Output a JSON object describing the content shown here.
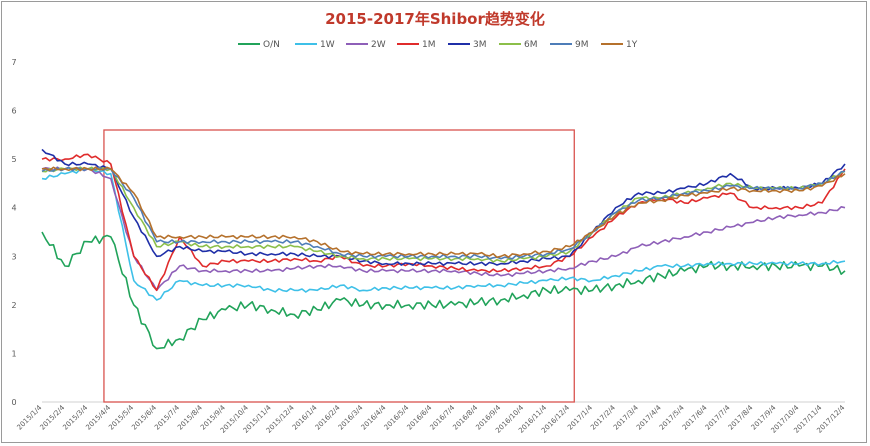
{
  "chart_data": {
    "type": "line",
    "title": "2015-2017年Shibor趋势变化",
    "xlabel": "",
    "ylabel": "",
    "ylim": [
      0,
      7
    ],
    "yticks": [
      "0",
      "1",
      "2",
      "3",
      "4",
      "5",
      "6",
      "7"
    ],
    "xticks": [
      "2015/1/4",
      "2015/2/4",
      "2015/3/4",
      "2015/4/4",
      "2015/5/4",
      "2015/6/4",
      "2015/7/4",
      "2015/8/4",
      "2015/9/4",
      "2015/10/4",
      "2015/11/4",
      "2015/12/4",
      "2016/1/4",
      "2016/2/4",
      "2016/3/4",
      "2016/4/4",
      "2016/5/4",
      "2016/6/4",
      "2016/7/4",
      "2016/8/4",
      "2016/9/4",
      "2016/10/4",
      "2016/11/4",
      "2016/12/4",
      "2017/1/4",
      "2017/2/4",
      "2017/3/4",
      "2017/4/4",
      "2017/5/4",
      "2017/6/4",
      "2017/7/4",
      "2017/8/4",
      "2017/9/4",
      "2017/10/4",
      "2017/11/4",
      "2017/12/4"
    ],
    "x_months": [
      0,
      1,
      2,
      3,
      4,
      5,
      6,
      7,
      8,
      9,
      10,
      11,
      12,
      13,
      14,
      15,
      16,
      17,
      18,
      19,
      20,
      21,
      22,
      23,
      24,
      25,
      26,
      27,
      28,
      29,
      30,
      31,
      32,
      33,
      34,
      35
    ],
    "grid": false,
    "legend": "top",
    "highlight_box": {
      "x_start_month": 2.7,
      "x_end_month": 23.2,
      "y_low": 0,
      "y_high": 5.6,
      "color": "#d9534f"
    },
    "series": [
      {
        "name": "O/N",
        "color": "#21a35a",
        "values": [
          3.5,
          2.8,
          3.3,
          3.4,
          2.0,
          1.1,
          1.3,
          1.7,
          1.9,
          2.0,
          1.9,
          1.8,
          1.9,
          2.1,
          2.0,
          2.0,
          2.0,
          2.0,
          2.0,
          2.05,
          2.1,
          2.2,
          2.3,
          2.3,
          2.3,
          2.4,
          2.5,
          2.6,
          2.7,
          2.8,
          2.8,
          2.8,
          2.8,
          2.8,
          2.8,
          2.7
        ]
      },
      {
        "name": "1W",
        "color": "#3ec0e8",
        "values": [
          4.6,
          4.7,
          4.8,
          4.7,
          2.5,
          2.1,
          2.5,
          2.4,
          2.4,
          2.4,
          2.3,
          2.3,
          2.3,
          2.4,
          2.3,
          2.35,
          2.35,
          2.35,
          2.35,
          2.4,
          2.4,
          2.45,
          2.5,
          2.55,
          2.5,
          2.6,
          2.7,
          2.8,
          2.8,
          2.85,
          2.85,
          2.85,
          2.85,
          2.85,
          2.85,
          2.9
        ]
      },
      {
        "name": "2W",
        "color": "#8e5fb8",
        "values": [
          4.8,
          4.8,
          4.8,
          4.6,
          3.0,
          2.3,
          2.8,
          2.7,
          2.7,
          2.7,
          2.7,
          2.75,
          2.8,
          2.8,
          2.7,
          2.7,
          2.7,
          2.7,
          2.7,
          2.65,
          2.6,
          2.65,
          2.7,
          2.75,
          2.9,
          3.0,
          3.2,
          3.3,
          3.4,
          3.5,
          3.6,
          3.7,
          3.8,
          3.85,
          3.9,
          4.0
        ]
      },
      {
        "name": "1M",
        "color": "#e02b2b",
        "values": [
          5.0,
          5.0,
          5.1,
          4.9,
          3.0,
          2.3,
          3.4,
          2.8,
          2.9,
          2.9,
          2.9,
          2.95,
          2.9,
          3.0,
          2.8,
          2.8,
          2.85,
          2.8,
          2.75,
          2.7,
          2.7,
          2.75,
          2.8,
          3.0,
          3.4,
          3.8,
          4.1,
          4.2,
          4.1,
          4.2,
          4.3,
          4.0,
          4.0,
          4.0,
          4.1,
          4.8
        ]
      },
      {
        "name": "3M",
        "color": "#1f2fa8",
        "values": [
          5.2,
          4.9,
          4.9,
          4.8,
          3.8,
          3.0,
          3.2,
          3.1,
          3.1,
          3.05,
          3.05,
          3.05,
          3.0,
          3.0,
          2.9,
          2.85,
          2.85,
          2.85,
          2.85,
          2.85,
          2.85,
          2.9,
          2.95,
          3.0,
          3.5,
          4.0,
          4.3,
          4.3,
          4.4,
          4.5,
          4.7,
          4.4,
          4.4,
          4.4,
          4.5,
          4.9
        ]
      },
      {
        "name": "6M",
        "color": "#8cbf4a",
        "values": [
          4.75,
          4.8,
          4.8,
          4.8,
          4.0,
          3.2,
          3.3,
          3.2,
          3.2,
          3.2,
          3.2,
          3.2,
          3.1,
          3.0,
          2.95,
          2.95,
          2.95,
          2.95,
          2.95,
          2.95,
          2.9,
          2.95,
          3.0,
          3.1,
          3.5,
          3.9,
          4.2,
          4.2,
          4.3,
          4.4,
          4.5,
          4.4,
          4.4,
          4.4,
          4.5,
          4.75
        ]
      },
      {
        "name": "9M",
        "color": "#4e7db8",
        "values": [
          4.75,
          4.8,
          4.8,
          4.8,
          4.2,
          3.3,
          3.3,
          3.3,
          3.3,
          3.3,
          3.3,
          3.3,
          3.2,
          3.05,
          3.0,
          3.0,
          3.0,
          3.0,
          3.0,
          3.0,
          2.95,
          3.0,
          3.05,
          3.15,
          3.5,
          3.9,
          4.15,
          4.2,
          4.3,
          4.35,
          4.45,
          4.4,
          4.4,
          4.4,
          4.5,
          4.75
        ]
      },
      {
        "name": "1Y",
        "color": "#b5712c",
        "values": [
          4.8,
          4.8,
          4.8,
          4.8,
          4.3,
          3.4,
          3.4,
          3.4,
          3.4,
          3.4,
          3.4,
          3.4,
          3.3,
          3.1,
          3.05,
          3.05,
          3.05,
          3.05,
          3.05,
          3.05,
          3.0,
          3.05,
          3.1,
          3.2,
          3.5,
          3.85,
          4.1,
          4.15,
          4.25,
          4.3,
          4.4,
          4.35,
          4.35,
          4.35,
          4.45,
          4.7
        ]
      }
    ]
  }
}
